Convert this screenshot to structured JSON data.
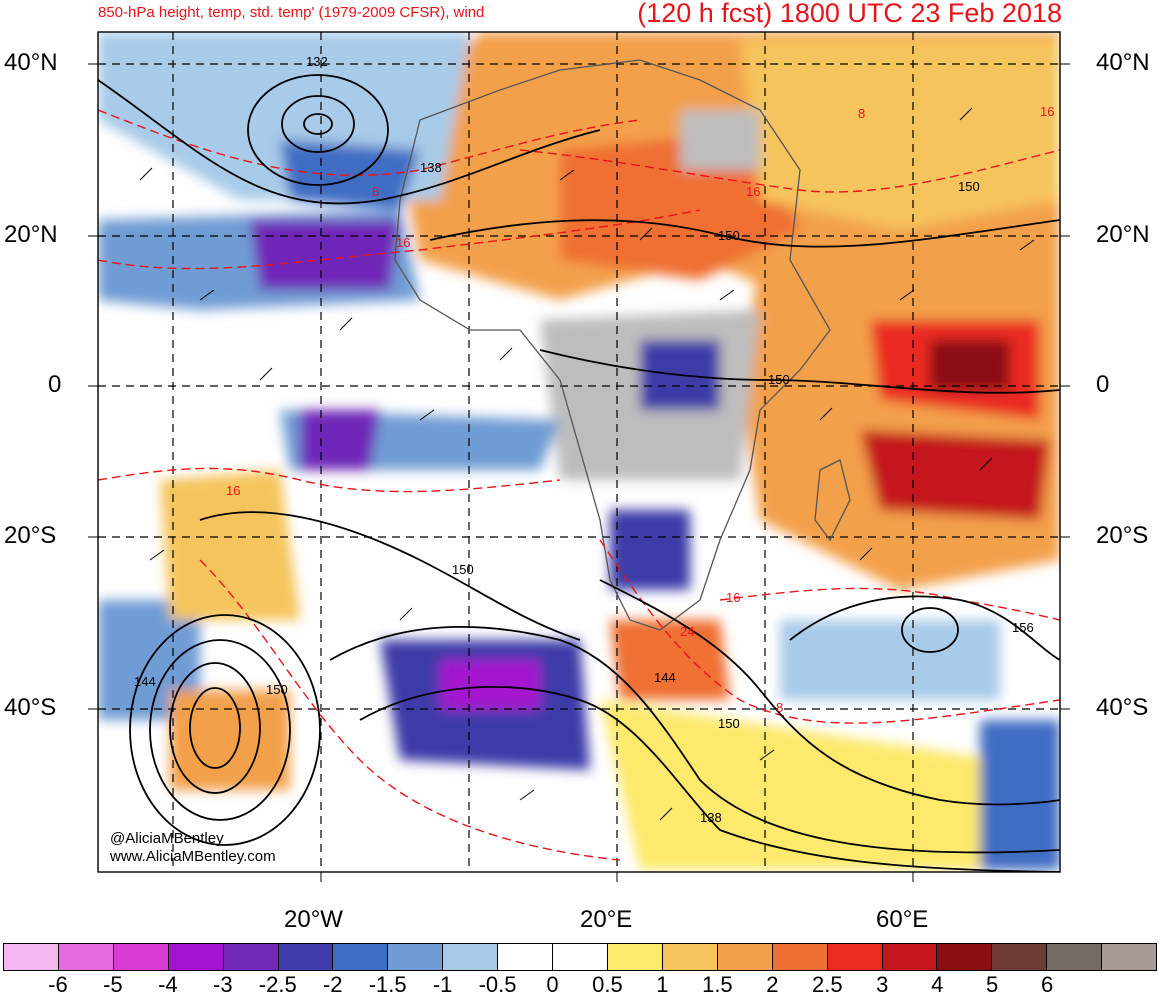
{
  "header": {
    "left_title": "850-hPa height, temp, std. temp' (1979-2009 CFSR), wind",
    "right_title": "(120 h fcst) 1800 UTC 23 Feb 2018"
  },
  "axes": {
    "lat_labels": [
      "40°N",
      "20°N",
      "0",
      "20°S",
      "40°S"
    ],
    "lon_labels": [
      "20°W",
      "20°E",
      "60°E"
    ]
  },
  "credit": {
    "line1": "@AliciaMBentley",
    "line2": "www.AliciaMBentley.com"
  },
  "contour_labels": {
    "height": [
      "132",
      "138",
      "150",
      "150",
      "150",
      "150",
      "144",
      "150",
      "144",
      "150",
      "156",
      "138"
    ],
    "temp": [
      "8",
      "16",
      "16",
      "16",
      "16",
      "8",
      "8",
      "24",
      "16"
    ]
  },
  "legend": {
    "colors": [
      "#f4b8f0",
      "#e56be0",
      "#d83cd3",
      "#a414d0",
      "#7028b8",
      "#3e3aa8",
      "#3f6dc4",
      "#6f9cd4",
      "#a8cbe9",
      "#ffffff",
      "#ffffff",
      "#fde96c",
      "#f6c45c",
      "#f3a04b",
      "#ef6f33",
      "#ea2b20",
      "#c4161c",
      "#8a0f13",
      "#6f3a33",
      "#736a66",
      "#a69b97"
    ],
    "ticks": [
      "-6",
      "-5",
      "-4",
      "-3",
      "-2.5",
      "-2",
      "-1.5",
      "-1",
      "-0.5",
      "0",
      "0.5",
      "1",
      "1.5",
      "2",
      "2.5",
      "3",
      "4",
      "5",
      "6"
    ]
  }
}
